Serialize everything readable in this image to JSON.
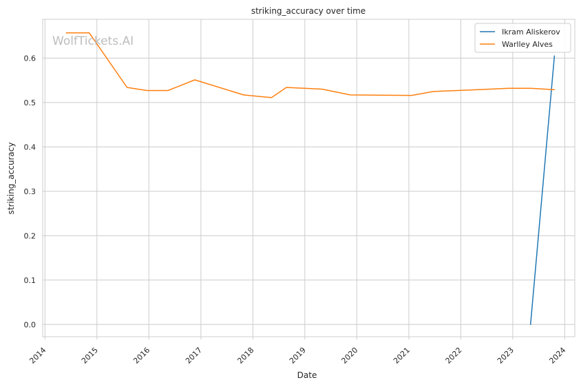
{
  "watermark": "WolfTickets.AI",
  "chart_data": {
    "type": "line",
    "title": "striking_accuracy over time",
    "xlabel": "Date",
    "ylabel": "striking_accuracy",
    "x_type": "date",
    "xlim": [
      "2013-12-16",
      "2024-03-12"
    ],
    "ylim": [
      -0.0275,
      0.6875
    ],
    "x_ticks": [
      {
        "value": "2014-01-01",
        "label": "2014"
      },
      {
        "value": "2015-01-01",
        "label": "2015"
      },
      {
        "value": "2016-01-01",
        "label": "2016"
      },
      {
        "value": "2017-01-01",
        "label": "2017"
      },
      {
        "value": "2018-01-01",
        "label": "2018"
      },
      {
        "value": "2019-01-01",
        "label": "2019"
      },
      {
        "value": "2020-01-01",
        "label": "2020"
      },
      {
        "value": "2021-01-01",
        "label": "2021"
      },
      {
        "value": "2022-01-01",
        "label": "2022"
      },
      {
        "value": "2023-01-01",
        "label": "2023"
      },
      {
        "value": "2024-01-01",
        "label": "2024"
      }
    ],
    "y_ticks": [
      {
        "value": 0.0,
        "label": "0.0"
      },
      {
        "value": 0.1,
        "label": "0.1"
      },
      {
        "value": 0.2,
        "label": "0.2"
      },
      {
        "value": 0.3,
        "label": "0.3"
      },
      {
        "value": 0.4,
        "label": "0.4"
      },
      {
        "value": 0.5,
        "label": "0.5"
      },
      {
        "value": 0.6,
        "label": "0.6"
      }
    ],
    "grid": true,
    "legend_position": "top-right",
    "series": [
      {
        "name": "Ikram Aliskerov",
        "color": "#1f77b4",
        "points": [
          {
            "x": "2023-05-06",
            "y": 0.0
          },
          {
            "x": "2023-10-21",
            "y": 0.605
          }
        ]
      },
      {
        "name": "Warlley Alves",
        "color": "#ff7f0e",
        "points": [
          {
            "x": "2014-05-31",
            "y": 0.657
          },
          {
            "x": "2014-11-08",
            "y": 0.657
          },
          {
            "x": "2015-08-01",
            "y": 0.534
          },
          {
            "x": "2015-12-19",
            "y": 0.527
          },
          {
            "x": "2016-05-14",
            "y": 0.527
          },
          {
            "x": "2016-11-19",
            "y": 0.551
          },
          {
            "x": "2017-10-28",
            "y": 0.517
          },
          {
            "x": "2018-05-12",
            "y": 0.511
          },
          {
            "x": "2018-08-25",
            "y": 0.534
          },
          {
            "x": "2019-05-04",
            "y": 0.53
          },
          {
            "x": "2019-11-16",
            "y": 0.517
          },
          {
            "x": "2021-01-20",
            "y": 0.516
          },
          {
            "x": "2021-06-26",
            "y": 0.525
          },
          {
            "x": "2022-03-05",
            "y": 0.528
          },
          {
            "x": "2022-12-03",
            "y": 0.532
          },
          {
            "x": "2023-05-06",
            "y": 0.532
          },
          {
            "x": "2023-10-21",
            "y": 0.529
          }
        ]
      }
    ]
  }
}
